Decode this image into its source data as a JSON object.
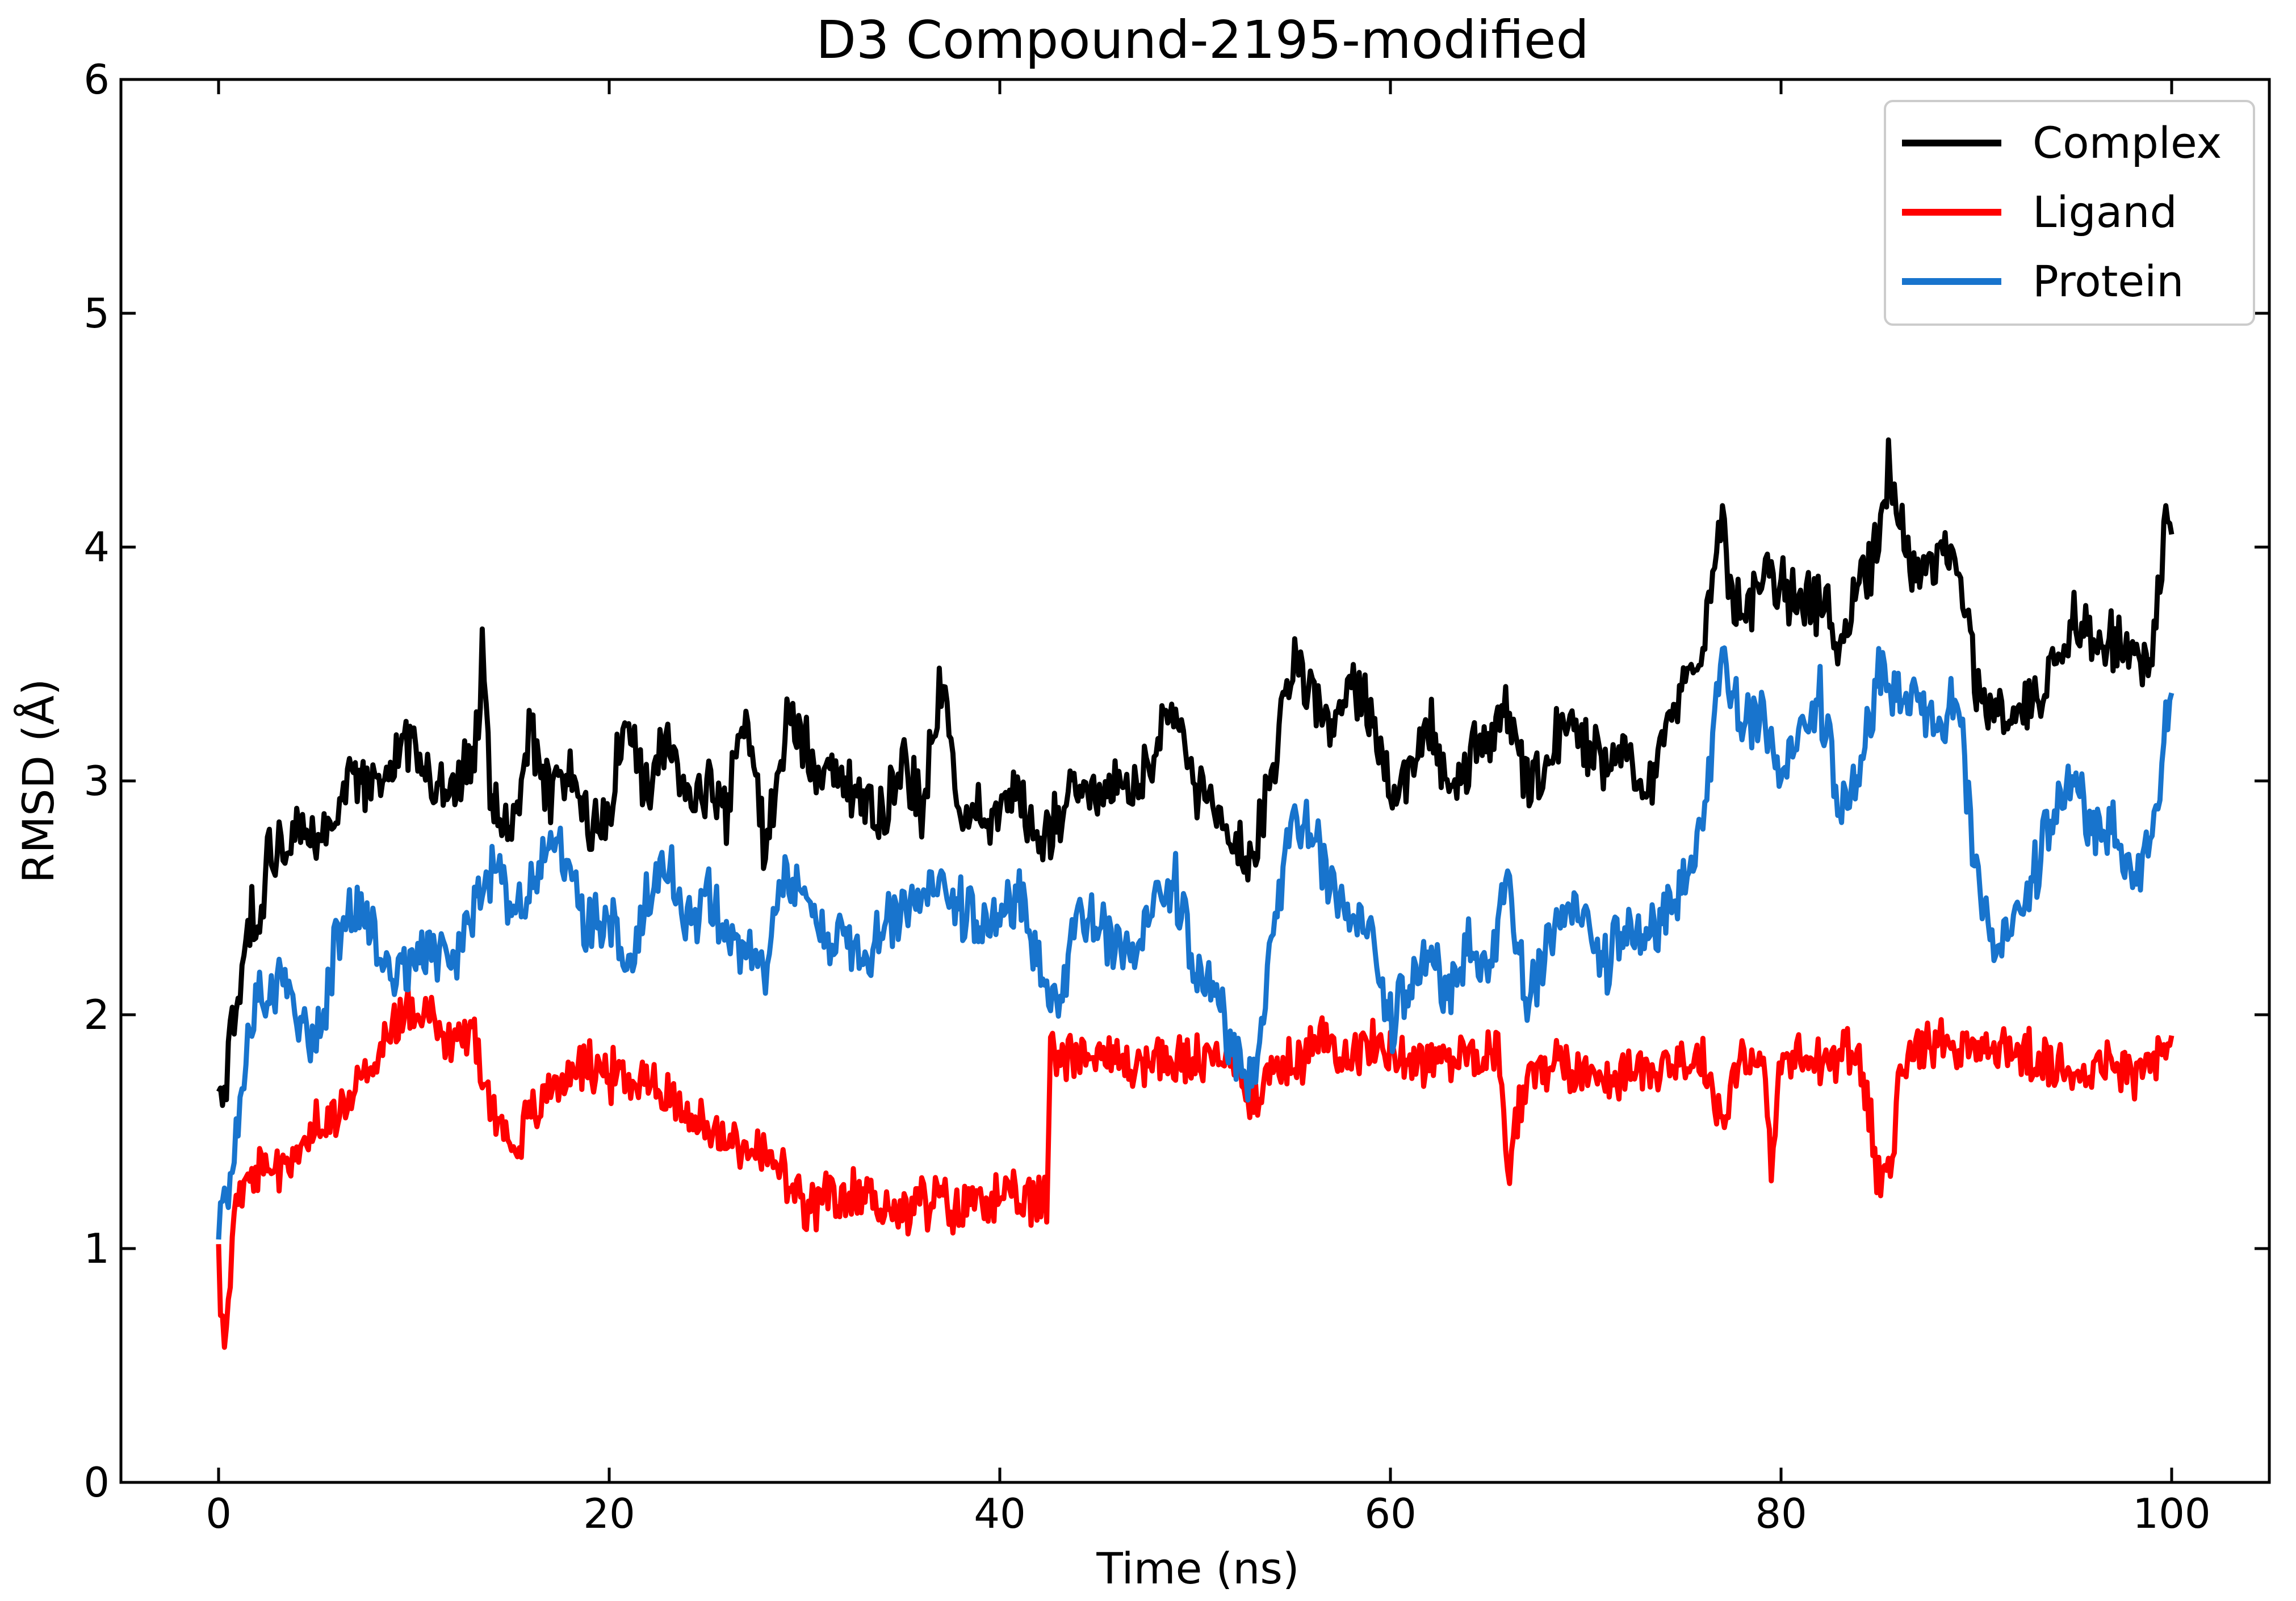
{
  "chart_data": {
    "type": "line",
    "title": "D3 Compound-2195-modified",
    "xlabel": "Time (ns)",
    "ylabel": "RMSD (Å)",
    "xlim": [
      -5,
      105
    ],
    "ylim": [
      0,
      6
    ],
    "xticks": [
      0,
      20,
      40,
      60,
      80,
      100
    ],
    "yticks": [
      0,
      1,
      2,
      3,
      4,
      5,
      6
    ],
    "grid": false,
    "legend_position": "top-right",
    "series": [
      {
        "name": "Complex",
        "color": "#000000",
        "anchors": [
          [
            0,
            1.65
          ],
          [
            0.3,
            1.6
          ],
          [
            0.6,
            1.95
          ],
          [
            1,
            2.0
          ],
          [
            1.5,
            2.45
          ],
          [
            2,
            2.4
          ],
          [
            2.5,
            2.65
          ],
          [
            3,
            2.75
          ],
          [
            4,
            2.75
          ],
          [
            5,
            2.7
          ],
          [
            6,
            2.9
          ],
          [
            7,
            3.05
          ],
          [
            8,
            2.95
          ],
          [
            9,
            3.1
          ],
          [
            10,
            3.2
          ],
          [
            11,
            2.95
          ],
          [
            12,
            2.95
          ],
          [
            13,
            3.05
          ],
          [
            13.5,
            3.5
          ],
          [
            14,
            2.9
          ],
          [
            15,
            2.75
          ],
          [
            16,
            3.2
          ],
          [
            17,
            2.9
          ],
          [
            18,
            3.05
          ],
          [
            19,
            2.8
          ],
          [
            20,
            2.9
          ],
          [
            21,
            3.3
          ],
          [
            22,
            2.9
          ],
          [
            23,
            3.2
          ],
          [
            24,
            2.9
          ],
          [
            25,
            3.0
          ],
          [
            26,
            2.85
          ],
          [
            27,
            3.3
          ],
          [
            28,
            2.7
          ],
          [
            29,
            3.25
          ],
          [
            30,
            3.2
          ],
          [
            31,
            3.0
          ],
          [
            32,
            3.0
          ],
          [
            33,
            2.95
          ],
          [
            34,
            2.85
          ],
          [
            35,
            3.1
          ],
          [
            36,
            2.9
          ],
          [
            37,
            3.4
          ],
          [
            38,
            2.85
          ],
          [
            39,
            2.9
          ],
          [
            40,
            2.85
          ],
          [
            41,
            2.95
          ],
          [
            42,
            2.75
          ],
          [
            43,
            2.85
          ],
          [
            44,
            3.05
          ],
          [
            45,
            2.9
          ],
          [
            46,
            3.0
          ],
          [
            47,
            2.95
          ],
          [
            48,
            3.1
          ],
          [
            49,
            3.3
          ],
          [
            50,
            2.95
          ],
          [
            51,
            2.85
          ],
          [
            52,
            2.75
          ],
          [
            53,
            2.65
          ],
          [
            54,
            3.1
          ],
          [
            55,
            3.5
          ],
          [
            56,
            3.4
          ],
          [
            57,
            3.2
          ],
          [
            58,
            3.4
          ],
          [
            59,
            3.3
          ],
          [
            60,
            2.95
          ],
          [
            61,
            3.0
          ],
          [
            62,
            3.25
          ],
          [
            63,
            2.9
          ],
          [
            64,
            3.1
          ],
          [
            65,
            3.15
          ],
          [
            66,
            3.3
          ],
          [
            67,
            2.95
          ],
          [
            68,
            3.05
          ],
          [
            69,
            3.25
          ],
          [
            70,
            3.15
          ],
          [
            71,
            3.1
          ],
          [
            72,
            3.2
          ],
          [
            73,
            2.9
          ],
          [
            74,
            3.2
          ],
          [
            75,
            3.4
          ],
          [
            76,
            3.5
          ],
          [
            76.8,
            4.2
          ],
          [
            77.5,
            3.8
          ],
          [
            78,
            3.75
          ],
          [
            79,
            3.85
          ],
          [
            80,
            3.9
          ],
          [
            81,
            3.7
          ],
          [
            82,
            3.8
          ],
          [
            83,
            3.6
          ],
          [
            84,
            3.85
          ],
          [
            85,
            4.0
          ],
          [
            85.5,
            4.4
          ],
          [
            86,
            4.1
          ],
          [
            87,
            3.9
          ],
          [
            88,
            3.95
          ],
          [
            89,
            3.95
          ],
          [
            90,
            3.4
          ],
          [
            91,
            3.3
          ],
          [
            92,
            3.3
          ],
          [
            93,
            3.35
          ],
          [
            94,
            3.5
          ],
          [
            95,
            3.7
          ],
          [
            96,
            3.65
          ],
          [
            97,
            3.6
          ],
          [
            98,
            3.55
          ],
          [
            99,
            3.5
          ],
          [
            99.7,
            4.1
          ],
          [
            100,
            4.0
          ]
        ],
        "noise": 0.11,
        "seed": 11
      },
      {
        "name": "Ligand",
        "color": "#ff0000",
        "anchors": [
          [
            0,
            0.95
          ],
          [
            0.3,
            0.55
          ],
          [
            0.8,
            1.2
          ],
          [
            1.5,
            1.25
          ],
          [
            2,
            1.3
          ],
          [
            3,
            1.35
          ],
          [
            4,
            1.4
          ],
          [
            5,
            1.5
          ],
          [
            6,
            1.55
          ],
          [
            7,
            1.7
          ],
          [
            8,
            1.8
          ],
          [
            9,
            1.95
          ],
          [
            10,
            2.05
          ],
          [
            11,
            2.0
          ],
          [
            12,
            1.85
          ],
          [
            13,
            1.95
          ],
          [
            14,
            1.6
          ],
          [
            15,
            1.45
          ],
          [
            16,
            1.55
          ],
          [
            17,
            1.7
          ],
          [
            18,
            1.75
          ],
          [
            19,
            1.8
          ],
          [
            20,
            1.75
          ],
          [
            21,
            1.7
          ],
          [
            22,
            1.75
          ],
          [
            23,
            1.65
          ],
          [
            24,
            1.6
          ],
          [
            25,
            1.5
          ],
          [
            26,
            1.45
          ],
          [
            27,
            1.45
          ],
          [
            28,
            1.4
          ],
          [
            29,
            1.3
          ],
          [
            30,
            1.15
          ],
          [
            31,
            1.2
          ],
          [
            32,
            1.2
          ],
          [
            33,
            1.25
          ],
          [
            34,
            1.2
          ],
          [
            35,
            1.15
          ],
          [
            36,
            1.2
          ],
          [
            37,
            1.2
          ],
          [
            38,
            1.15
          ],
          [
            39,
            1.25
          ],
          [
            40,
            1.2
          ],
          [
            41,
            1.2
          ],
          [
            42,
            1.2
          ],
          [
            42.4,
            1.2
          ],
          [
            42.6,
            1.85
          ],
          [
            44,
            1.85
          ],
          [
            46,
            1.8
          ],
          [
            48,
            1.8
          ],
          [
            50,
            1.8
          ],
          [
            52,
            1.8
          ],
          [
            53,
            1.65
          ],
          [
            54,
            1.75
          ],
          [
            55,
            1.8
          ],
          [
            56,
            1.85
          ],
          [
            57,
            1.9
          ],
          [
            58,
            1.85
          ],
          [
            60,
            1.85
          ],
          [
            62,
            1.8
          ],
          [
            64,
            1.85
          ],
          [
            65.5,
            1.85
          ],
          [
            66,
            1.3
          ],
          [
            66.6,
            1.65
          ],
          [
            68,
            1.8
          ],
          [
            70,
            1.75
          ],
          [
            72,
            1.75
          ],
          [
            74,
            1.8
          ],
          [
            76,
            1.8
          ],
          [
            77,
            1.55
          ],
          [
            78,
            1.85
          ],
          [
            79,
            1.8
          ],
          [
            79.5,
            1.35
          ],
          [
            80,
            1.8
          ],
          [
            82,
            1.8
          ],
          [
            84,
            1.85
          ],
          [
            85,
            1.3
          ],
          [
            85.7,
            1.35
          ],
          [
            86,
            1.8
          ],
          [
            88,
            1.9
          ],
          [
            90,
            1.85
          ],
          [
            92,
            1.85
          ],
          [
            94,
            1.75
          ],
          [
            96,
            1.8
          ],
          [
            98,
            1.75
          ],
          [
            100,
            1.85
          ]
        ],
        "noise": 0.09,
        "seed": 23
      },
      {
        "name": "Protein",
        "color": "#1874cd",
        "anchors": [
          [
            0,
            1.1
          ],
          [
            0.5,
            1.25
          ],
          [
            1,
            1.5
          ],
          [
            1.5,
            1.9
          ],
          [
            2,
            2.05
          ],
          [
            3,
            2.15
          ],
          [
            4,
            2.0
          ],
          [
            5,
            1.85
          ],
          [
            6,
            2.3
          ],
          [
            7,
            2.5
          ],
          [
            8,
            2.35
          ],
          [
            9,
            2.15
          ],
          [
            10,
            2.25
          ],
          [
            11,
            2.3
          ],
          [
            12,
            2.2
          ],
          [
            13,
            2.4
          ],
          [
            14,
            2.6
          ],
          [
            15,
            2.45
          ],
          [
            16,
            2.5
          ],
          [
            17,
            2.75
          ],
          [
            18,
            2.6
          ],
          [
            19,
            2.35
          ],
          [
            20,
            2.45
          ],
          [
            21,
            2.2
          ],
          [
            22,
            2.5
          ],
          [
            23,
            2.65
          ],
          [
            24,
            2.35
          ],
          [
            25,
            2.5
          ],
          [
            26,
            2.3
          ],
          [
            27,
            2.3
          ],
          [
            28,
            2.15
          ],
          [
            29,
            2.6
          ],
          [
            30,
            2.45
          ],
          [
            31,
            2.3
          ],
          [
            32,
            2.35
          ],
          [
            33,
            2.2
          ],
          [
            34,
            2.35
          ],
          [
            35,
            2.4
          ],
          [
            36,
            2.55
          ],
          [
            37,
            2.5
          ],
          [
            38,
            2.45
          ],
          [
            39,
            2.35
          ],
          [
            40,
            2.4
          ],
          [
            41,
            2.55
          ],
          [
            42,
            2.2
          ],
          [
            43,
            2.0
          ],
          [
            44,
            2.45
          ],
          [
            45,
            2.35
          ],
          [
            46,
            2.25
          ],
          [
            47,
            2.3
          ],
          [
            48,
            2.45
          ],
          [
            49,
            2.55
          ],
          [
            50,
            2.15
          ],
          [
            51,
            2.1
          ],
          [
            52,
            1.85
          ],
          [
            53,
            1.7
          ],
          [
            54,
            2.35
          ],
          [
            55,
            2.85
          ],
          [
            56,
            2.75
          ],
          [
            57,
            2.5
          ],
          [
            58,
            2.45
          ],
          [
            59,
            2.3
          ],
          [
            60,
            1.95
          ],
          [
            61,
            2.1
          ],
          [
            62,
            2.25
          ],
          [
            63,
            2.1
          ],
          [
            64,
            2.3
          ],
          [
            65,
            2.15
          ],
          [
            66,
            2.6
          ],
          [
            67,
            2.0
          ],
          [
            68,
            2.25
          ],
          [
            69,
            2.5
          ],
          [
            70,
            2.35
          ],
          [
            71,
            2.2
          ],
          [
            72,
            2.35
          ],
          [
            73,
            2.3
          ],
          [
            74,
            2.45
          ],
          [
            75,
            2.55
          ],
          [
            76,
            2.8
          ],
          [
            77,
            3.55
          ],
          [
            78,
            3.2
          ],
          [
            79,
            3.25
          ],
          [
            80,
            3.05
          ],
          [
            81,
            3.15
          ],
          [
            82,
            3.35
          ],
          [
            83,
            2.85
          ],
          [
            84,
            3.0
          ],
          [
            85,
            3.5
          ],
          [
            86,
            3.35
          ],
          [
            87,
            3.35
          ],
          [
            88,
            3.2
          ],
          [
            89,
            3.35
          ],
          [
            90,
            2.55
          ],
          [
            91,
            2.3
          ],
          [
            92,
            2.35
          ],
          [
            93,
            2.6
          ],
          [
            94,
            2.85
          ],
          [
            95,
            3.0
          ],
          [
            96,
            2.8
          ],
          [
            97,
            2.8
          ],
          [
            98,
            2.55
          ],
          [
            99,
            2.75
          ],
          [
            100,
            3.4
          ]
        ],
        "noise": 0.11,
        "seed": 37
      }
    ]
  }
}
